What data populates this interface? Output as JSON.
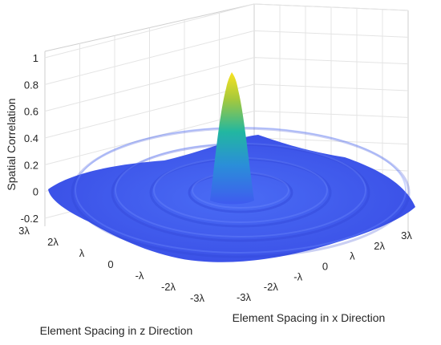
{
  "chart_data": {
    "type": "surface",
    "title": "",
    "zlabel": "Spatial Correlation",
    "xlabel": "Element Spacing in x Direction",
    "ylabel": "Element Spacing in z Direction",
    "x_range": [
      -3,
      3
    ],
    "y_range": [
      -3,
      3
    ],
    "z_range": [
      -0.2,
      1
    ],
    "x_ticks": [
      "-3λ",
      "-2λ",
      "-λ",
      "0",
      "λ",
      "2λ",
      "3λ"
    ],
    "y_ticks": [
      "3λ",
      "2λ",
      "λ",
      "0",
      "-λ",
      "-2λ",
      "-3λ"
    ],
    "z_ticks": [
      "1",
      "0.8",
      "0.6",
      "0.4",
      "0.2",
      "0",
      "-0.2"
    ],
    "z_tick_values": [
      1,
      0.8,
      0.6,
      0.4,
      0.2,
      0,
      -0.2
    ],
    "peak_value": 1,
    "grid": true,
    "colormap": "parula",
    "colors": {
      "low": "#3f5bf0",
      "mid": "#22b7a0",
      "high": "#f9e321"
    }
  }
}
